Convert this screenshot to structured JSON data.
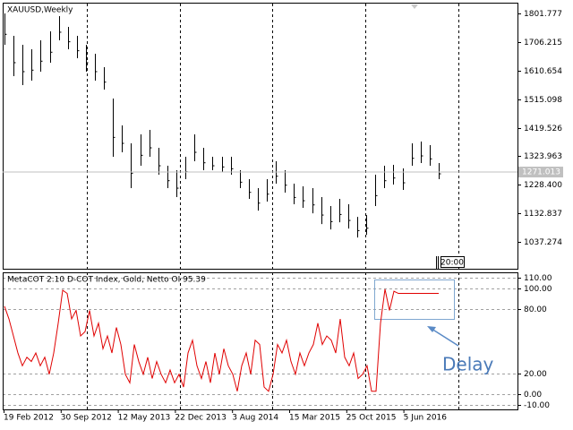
{
  "chart_data": [
    {
      "type": "ohlc",
      "title": "XAUUSD,Weekly",
      "color": "#000000",
      "high": [
        1802,
        1727,
        1697,
        1682,
        1712,
        1742,
        1793,
        1757,
        1727,
        1697,
        1667,
        1622,
        1517,
        1427,
        1367,
        1397,
        1412,
        1352,
        1292,
        1277,
        1322,
        1397,
        1352,
        1322,
        1322,
        1322,
        1277,
        1247,
        1217,
        1247,
        1307,
        1277,
        1232,
        1223,
        1217,
        1187,
        1157,
        1181,
        1163,
        1121,
        1127,
        1262,
        1292,
        1295,
        1283,
        1367,
        1373,
        1361,
        1301
      ],
      "low": [
        1697,
        1592,
        1562,
        1577,
        1607,
        1637,
        1712,
        1682,
        1652,
        1607,
        1577,
        1547,
        1322,
        1337,
        1217,
        1292,
        1322,
        1262,
        1217,
        1187,
        1247,
        1307,
        1277,
        1277,
        1271,
        1262,
        1217,
        1181,
        1142,
        1172,
        1232,
        1202,
        1163,
        1151,
        1133,
        1097,
        1079,
        1103,
        1082,
        1052,
        1061,
        1157,
        1217,
        1229,
        1211,
        1292,
        1301,
        1292,
        1247
      ],
      "ylim": [
        947.3,
        1837.8
      ],
      "yticks": [
        1801.777,
        1706.215,
        1610.654,
        1515.098,
        1419.526,
        1323.963,
        {
          "value": 1228.4,
          "label": "1228.400"
        },
        1132.837,
        1037.274
      ],
      "current_price": 1271.013,
      "time_label": "20:00",
      "grid": false
    },
    {
      "type": "line",
      "title": "MetaCOT 2.10 D-COT Index, Gold, Netto OI 95.39",
      "color": "#e00000",
      "values": [
        83,
        71,
        55,
        39,
        27,
        35,
        31,
        39,
        27,
        35,
        19,
        39,
        67,
        98,
        95,
        71,
        79,
        55,
        59,
        79,
        55,
        67,
        43,
        55,
        39,
        63,
        47,
        19,
        11,
        47,
        31,
        19,
        35,
        15,
        31,
        19,
        11,
        23,
        11,
        19,
        7,
        39,
        51,
        27,
        15,
        31,
        11,
        39,
        19,
        43,
        27,
        19,
        3,
        27,
        39,
        19,
        51,
        47,
        7,
        3,
        19,
        47,
        39,
        51,
        31,
        19,
        39,
        27,
        39,
        47,
        67,
        47,
        55,
        51,
        39,
        71,
        35,
        27,
        39,
        15,
        19,
        27,
        3,
        3,
        67,
        99,
        79,
        97,
        95,
        95,
        95,
        95,
        95,
        95,
        95,
        95,
        95,
        95
      ],
      "ylim": [
        -14,
        114.8
      ],
      "yticks": [
        {
          "value": 110,
          "label": "110.00"
        },
        {
          "value": 100,
          "label": "100.00"
        },
        {
          "value": 80,
          "label": "80.00"
        },
        {
          "value": 20,
          "label": "20.00"
        },
        {
          "value": 0,
          "label": "0.00"
        },
        {
          "value": -10,
          "label": "-10.00"
        }
      ],
      "grid": true,
      "annotation": "Delay",
      "x_tick_labels": [
        "19 Feb 2012",
        "30 Sep 2012",
        "12 May 2013",
        "22 Dec 2013",
        "3 Aug 2014",
        "15 Mar 2015",
        "25 Oct 2015",
        "5 Jun 2016"
      ]
    }
  ]
}
